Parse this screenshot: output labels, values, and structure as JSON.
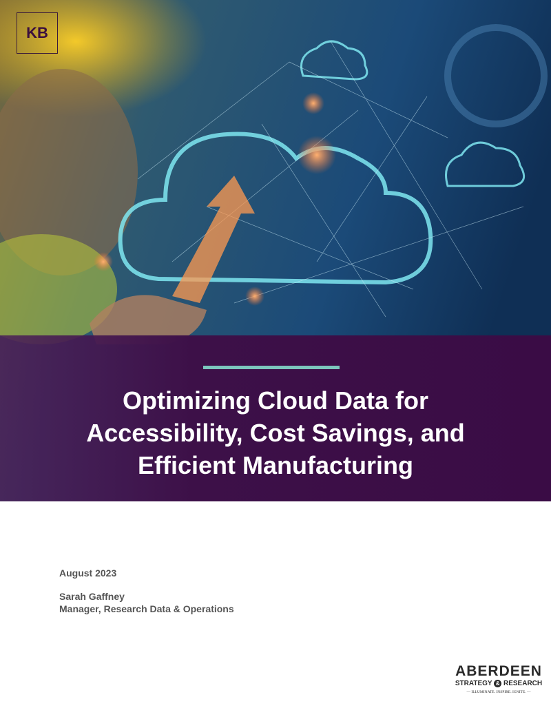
{
  "badge": "KB",
  "title": {
    "lines": [
      "Optimizing Cloud Data for",
      "Accessibility, Cost Savings, and",
      "Efficient Manufacturing"
    ]
  },
  "date": "August 2023",
  "author": {
    "name": "Sarah Gaffney",
    "role": "Manager, Research Data & Operations"
  },
  "logo": {
    "name": "ABERDEEN",
    "line2": [
      "STRATEGY",
      "&",
      "RESEARCH"
    ],
    "tagline": "ILLUMINATE. INSPIRE. IGNITE."
  }
}
